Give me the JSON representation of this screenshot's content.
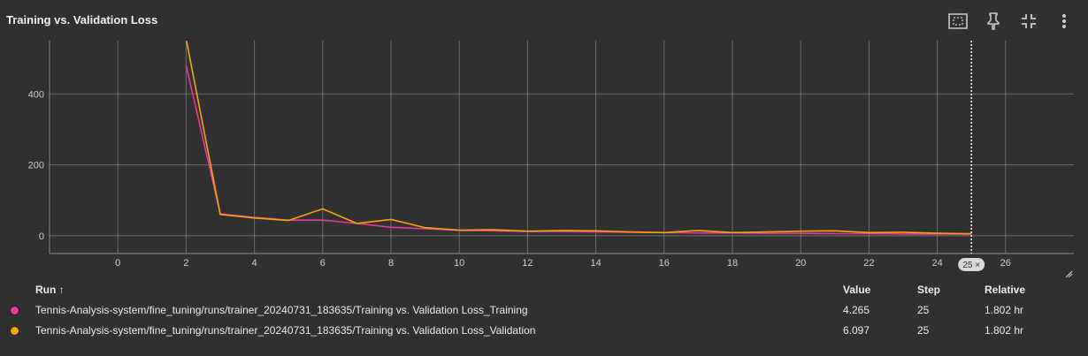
{
  "title": "Training vs. Validation Loss",
  "toolbar": {
    "icons": [
      "fit-domain-icon",
      "pin-icon",
      "collapse-icon",
      "more-vert-icon"
    ]
  },
  "chart_data": {
    "type": "line",
    "title": "Training vs. Validation Loss",
    "xlabel": "",
    "ylabel": "",
    "xlim": [
      -2,
      28
    ],
    "ylim": [
      -50,
      550
    ],
    "x_ticks": [
      0,
      2,
      4,
      6,
      8,
      10,
      12,
      14,
      16,
      18,
      20,
      22,
      24,
      26
    ],
    "y_ticks": [
      0,
      200,
      400
    ],
    "grid": true,
    "hover_step": 25,
    "hover_badge": "25 ×",
    "series": [
      {
        "name": "Training",
        "color": "#e8359b",
        "x": [
          2,
          3,
          4,
          5,
          6,
          7,
          8,
          9,
          10,
          11,
          12,
          13,
          14,
          15,
          16,
          17,
          18,
          19,
          20,
          21,
          22,
          23,
          24,
          25
        ],
        "y": [
          480,
          62,
          52,
          44,
          44,
          35,
          24,
          20,
          15,
          14,
          12,
          12,
          11,
          10,
          9,
          8,
          8,
          7,
          7,
          6,
          6,
          5,
          5,
          4.265
        ]
      },
      {
        "name": "Validation",
        "color": "#f5a30a",
        "x": [
          2,
          3,
          4,
          5,
          6,
          7,
          8,
          9,
          10,
          11,
          12,
          13,
          14,
          15,
          16,
          17,
          18,
          19,
          20,
          21,
          22,
          23,
          24,
          25
        ],
        "y": [
          555,
          60,
          50,
          43,
          76,
          35,
          46,
          23,
          16,
          17,
          13,
          15,
          14,
          11,
          9,
          15,
          9,
          11,
          13,
          14,
          9,
          10,
          7,
          6.097
        ]
      }
    ]
  },
  "legend": {
    "headers": {
      "run": "Run ↑",
      "value": "Value",
      "step": "Step",
      "relative": "Relative"
    },
    "rows": [
      {
        "color": "#e8359b",
        "run": "Tennis-Analysis-system/fine_tuning/runs/trainer_20240731_183635/Training vs. Validation Loss_Training",
        "value": "4.265",
        "step": "25",
        "relative": "1.802 hr"
      },
      {
        "color": "#f5a30a",
        "run": "Tennis-Analysis-system/fine_tuning/runs/trainer_20240731_183635/Training vs. Validation Loss_Validation",
        "value": "6.097",
        "step": "25",
        "relative": "1.802 hr"
      }
    ]
  }
}
